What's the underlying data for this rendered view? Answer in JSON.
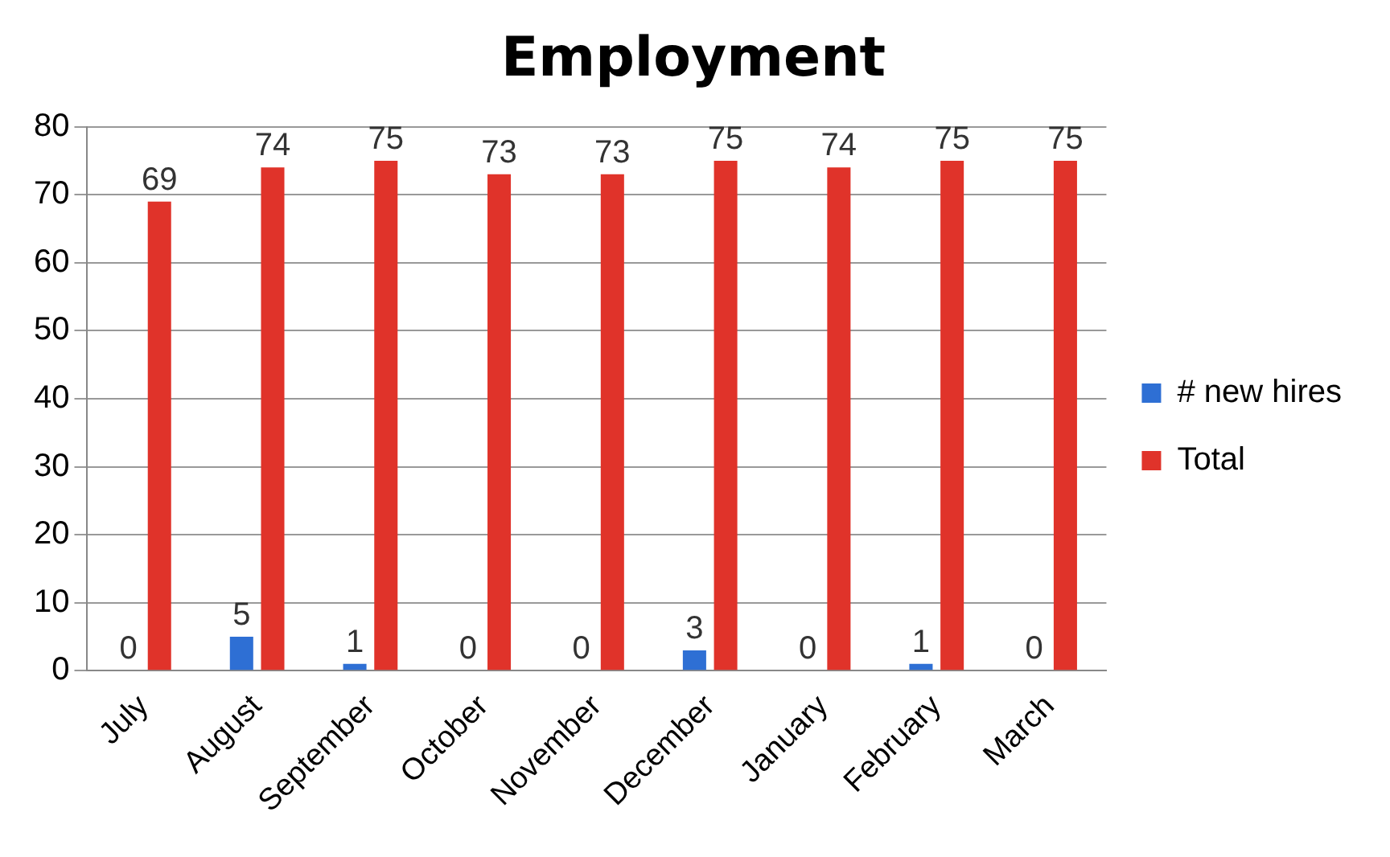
{
  "chart_data": {
    "type": "bar",
    "title": "Employment",
    "categories": [
      "July",
      "August",
      "September",
      "October",
      "November",
      "December",
      "January",
      "February",
      "March"
    ],
    "series": [
      {
        "name": "# new hires",
        "color": "#2e6fd4",
        "values": [
          0,
          5,
          1,
          0,
          0,
          3,
          0,
          1,
          0
        ]
      },
      {
        "name": "Total",
        "color": "#e0332a",
        "values": [
          69,
          74,
          75,
          73,
          73,
          75,
          74,
          75,
          75
        ]
      }
    ],
    "ylim": [
      0,
      80
    ],
    "yticks": [
      0,
      10,
      20,
      30,
      40,
      50,
      60,
      70,
      80
    ],
    "grid": "y",
    "legend": "right",
    "data_labels": true
  }
}
